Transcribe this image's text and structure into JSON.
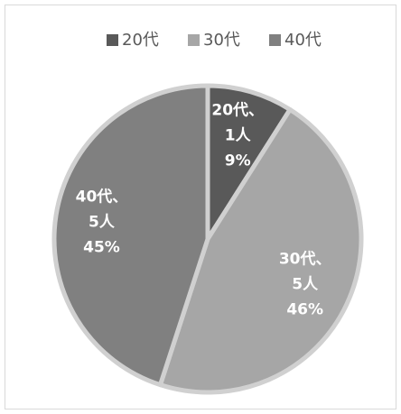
{
  "chart_data": {
    "type": "pie",
    "categories": [
      "20代",
      "30代",
      "40代"
    ],
    "values": [
      9,
      46,
      45
    ],
    "value_labels": [
      "9%",
      "46%",
      "45%"
    ],
    "label_names": [
      "20代、",
      "30代、",
      "40代、"
    ],
    "counts": [
      1,
      5,
      5
    ],
    "count_labels": [
      "1人",
      "5人",
      "5人"
    ],
    "colors": [
      "#595959",
      "#a6a6a6",
      "#808080"
    ],
    "legend": "top"
  }
}
